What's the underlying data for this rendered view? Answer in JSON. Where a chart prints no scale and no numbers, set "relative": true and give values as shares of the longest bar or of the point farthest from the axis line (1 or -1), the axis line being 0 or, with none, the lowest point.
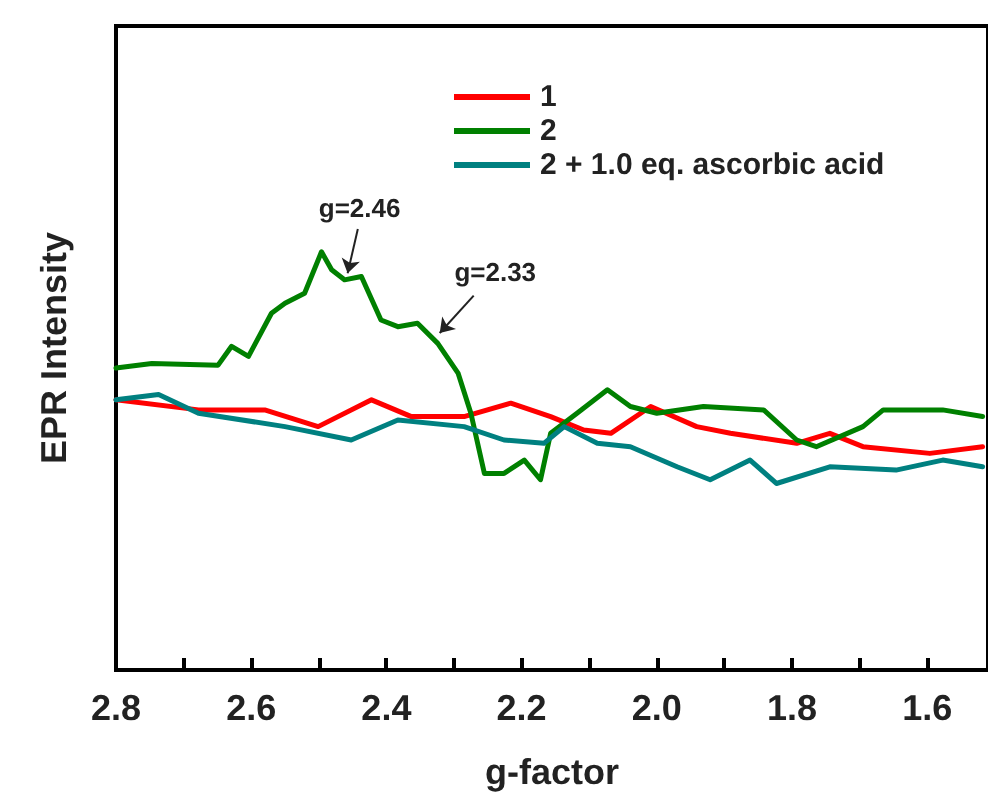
{
  "chart_data": {
    "type": "line",
    "relative": true,
    "xlabel": "g-factor",
    "ylabel": "EPR Intensity",
    "xlim": [
      2.8,
      1.51
    ],
    "xticks": [
      2.8,
      {
        "value": 2.7,
        "label": null
      },
      2.6,
      {
        "value": 2.5,
        "label": null
      },
      2.4,
      {
        "value": 2.3,
        "label": null
      },
      2.2,
      {
        "value": 2.1,
        "label": null
      },
      {
        "value": 2.0,
        "label": "2.0"
      },
      {
        "value": 1.9,
        "label": null
      },
      1.8,
      {
        "value": 1.7,
        "label": null
      },
      1.6
    ],
    "tick_labels": "x",
    "grid": false,
    "legend": "top right",
    "marker": "none",
    "line_style": "solid",
    "annotations": [
      {
        "text": "g=2.46",
        "x": 2.46,
        "y": 0.93
      },
      {
        "text": "g=2.33",
        "x": 2.33,
        "y": 0.79
      }
    ],
    "series": [
      {
        "name": "1",
        "color": "#ff0000",
        "x": [
          2.8,
          2.678,
          2.58,
          2.501,
          2.422,
          2.363,
          2.285,
          2.216,
          2.157,
          2.108,
          2.068,
          2.009,
          1.941,
          1.891,
          1.793,
          1.744,
          1.695,
          1.596,
          1.518
        ],
        "values": [
          0.646,
          0.622,
          0.622,
          0.582,
          0.646,
          0.606,
          0.606,
          0.638,
          0.606,
          0.574,
          0.566,
          0.63,
          0.582,
          0.566,
          0.542,
          0.566,
          0.534,
          0.518,
          0.534
        ]
      },
      {
        "name": "2",
        "color": "#008000",
        "x": [
          2.8,
          2.747,
          2.649,
          2.629,
          2.604,
          2.57,
          2.55,
          2.521,
          2.496,
          2.481,
          2.462,
          2.437,
          2.408,
          2.383,
          2.354,
          2.324,
          2.294,
          2.275,
          2.255,
          2.226,
          2.196,
          2.172,
          2.157,
          2.118,
          2.073,
          2.039,
          2.0,
          1.931,
          1.842,
          1.793,
          1.764,
          1.695,
          1.665,
          1.577,
          1.518
        ],
        "values": [
          0.722,
          0.733,
          0.729,
          0.774,
          0.75,
          0.853,
          0.877,
          0.901,
          1.0,
          0.957,
          0.933,
          0.941,
          0.837,
          0.821,
          0.829,
          0.781,
          0.71,
          0.614,
          0.47,
          0.47,
          0.502,
          0.455,
          0.566,
          0.614,
          0.67,
          0.63,
          0.614,
          0.63,
          0.622,
          0.55,
          0.534,
          0.582,
          0.622,
          0.622,
          0.606
        ]
      },
      {
        "name": "2 + 1.0 eq. ascorbic acid",
        "color": "#008080",
        "x": [
          2.8,
          2.737,
          2.678,
          2.55,
          2.452,
          2.383,
          2.285,
          2.226,
          2.167,
          2.137,
          2.088,
          2.039,
          1.97,
          1.921,
          1.862,
          1.823,
          1.744,
          1.646,
          1.577,
          1.518
        ],
        "values": [
          0.646,
          0.659,
          0.614,
          0.582,
          0.55,
          0.598,
          0.582,
          0.55,
          0.542,
          0.582,
          0.542,
          0.534,
          0.486,
          0.455,
          0.502,
          0.446,
          0.486,
          0.478,
          0.502,
          0.486
        ]
      }
    ]
  }
}
